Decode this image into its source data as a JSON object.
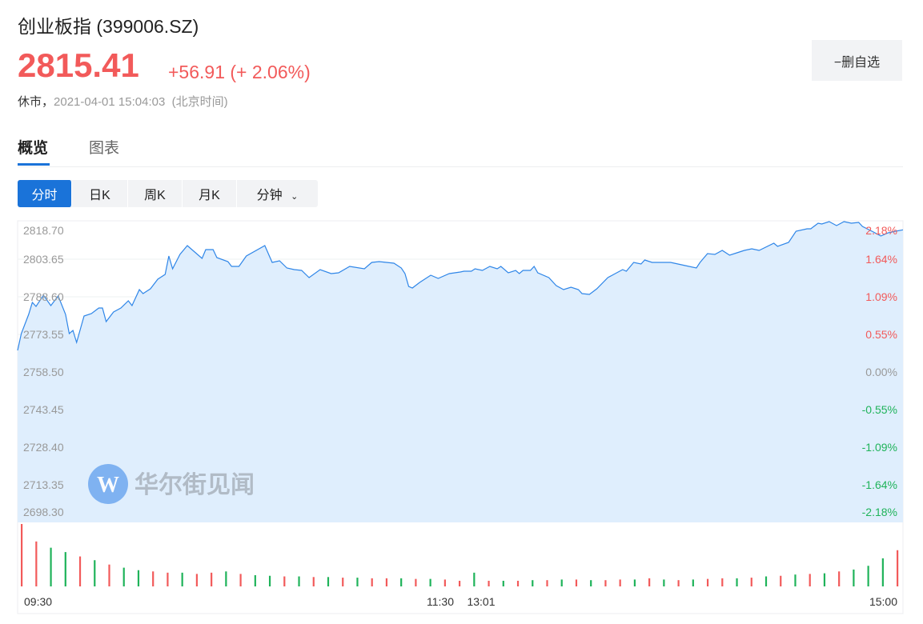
{
  "header": {
    "name": "创业板指",
    "code": "(399006.SZ)",
    "price": "2815.41",
    "change": "+56.91",
    "change_pct": "(+ 2.06%)",
    "status": "休市，",
    "time": "2021-04-01 15:04:03",
    "timezone": "(北京时间)",
    "fav_button": "−删自选"
  },
  "tabs": [
    {
      "label": "概览",
      "active": true
    },
    {
      "label": "图表",
      "active": false
    }
  ],
  "periods": [
    {
      "label": "分时",
      "active": true
    },
    {
      "label": "日K"
    },
    {
      "label": "周K"
    },
    {
      "label": "月K"
    },
    {
      "label": "分钟",
      "has_dropdown": true
    }
  ],
  "watermark": {
    "text": "华尔街见闻",
    "logo_letter": "W"
  },
  "colors": {
    "up": "#f25a5a",
    "down": "#1fb35a",
    "line": "#2f86e8",
    "area": "#dfeefd",
    "accent": "#1a73d9",
    "neutral": "#999999"
  },
  "chart_data": {
    "type": "area",
    "prev_close": 2758.5,
    "ylim": [
      2698.3,
      2818.7
    ],
    "y_ticks": [
      "2818.70",
      "2803.65",
      "2788.60",
      "2773.55",
      "2758.50",
      "2743.45",
      "2728.40",
      "2713.35",
      "2698.30"
    ],
    "pct_ticks": [
      "2.18%",
      "1.64%",
      "1.09%",
      "0.55%",
      "0.00%",
      "-0.55%",
      "-1.09%",
      "-1.64%",
      "-2.18%"
    ],
    "x_ticks": [
      "09:30",
      "11:30",
      "13:01",
      "15:00"
    ],
    "points": [
      [
        "09:30",
        2767.15
      ],
      [
        "09:31",
        2773.87
      ],
      [
        "09:33",
        2781.56
      ],
      [
        "09:34",
        2786.36
      ],
      [
        "09:35",
        2784.76
      ],
      [
        "09:37",
        2789.24
      ],
      [
        "09:39",
        2785.08
      ],
      [
        "09:41",
        2788.92
      ],
      [
        "09:43",
        2781.56
      ],
      [
        "09:44",
        2773.87
      ],
      [
        "09:45",
        2775.15
      ],
      [
        "09:46",
        2770.35
      ],
      [
        "09:48",
        2780.92
      ],
      [
        "09:50",
        2781.88
      ],
      [
        "09:52",
        2784.12
      ],
      [
        "09:53",
        2784.12
      ],
      [
        "09:54",
        2778.67
      ],
      [
        "09:56",
        2782.52
      ],
      [
        "09:58",
        2784.12
      ],
      [
        "10:00",
        2787.0
      ],
      [
        "10:01",
        2785.08
      ],
      [
        "10:03",
        2791.48
      ],
      [
        "10:04",
        2789.88
      ],
      [
        "10:06",
        2791.8
      ],
      [
        "10:08",
        2795.65
      ],
      [
        "10:10",
        2797.57
      ],
      [
        "10:11",
        2804.93
      ],
      [
        "10:12",
        2799.81
      ],
      [
        "10:14",
        2805.57
      ],
      [
        "10:16",
        2809.09
      ],
      [
        "10:18",
        2806.53
      ],
      [
        "10:20",
        2803.97
      ],
      [
        "10:21",
        2807.49
      ],
      [
        "10:23",
        2807.49
      ],
      [
        "10:24",
        2804.29
      ],
      [
        "10:27",
        2802.69
      ],
      [
        "10:28",
        2800.77
      ],
      [
        "10:30",
        2800.77
      ],
      [
        "10:32",
        2804.93
      ],
      [
        "10:37",
        2809.09
      ],
      [
        "10:39",
        2802.37
      ],
      [
        "10:41",
        2803.01
      ],
      [
        "10:43",
        2800.13
      ],
      [
        "10:45",
        2799.49
      ],
      [
        "10:47",
        2799.17
      ],
      [
        "10:49",
        2796.29
      ],
      [
        "10:52",
        2799.49
      ],
      [
        "10:55",
        2797.89
      ],
      [
        "10:57",
        2798.21
      ],
      [
        "11:00",
        2800.77
      ],
      [
        "11:04",
        2799.81
      ],
      [
        "11:06",
        2802.37
      ],
      [
        "11:08",
        2802.69
      ],
      [
        "11:12",
        2802.05
      ],
      [
        "11:14",
        2800.13
      ],
      [
        "11:15",
        2797.89
      ],
      [
        "11:16",
        2792.76
      ],
      [
        "11:17",
        2792.12
      ],
      [
        "11:19",
        2794.36
      ],
      [
        "11:22",
        2797.25
      ],
      [
        "11:24",
        2795.97
      ],
      [
        "11:27",
        2797.89
      ],
      [
        "11:30",
        2798.53
      ],
      [
        "13:01",
        2798.85
      ],
      [
        "13:03",
        2798.85
      ],
      [
        "13:04",
        2799.81
      ],
      [
        "13:06",
        2799.17
      ],
      [
        "13:08",
        2800.77
      ],
      [
        "13:10",
        2799.81
      ],
      [
        "13:11",
        2800.77
      ],
      [
        "13:13",
        2798.21
      ],
      [
        "13:15",
        2799.17
      ],
      [
        "13:16",
        2797.89
      ],
      [
        "13:17",
        2799.17
      ],
      [
        "13:19",
        2799.17
      ],
      [
        "13:20",
        2800.77
      ],
      [
        "13:21",
        2798.21
      ],
      [
        "13:24",
        2796.29
      ],
      [
        "13:26",
        2793.08
      ],
      [
        "13:28",
        2791.48
      ],
      [
        "13:30",
        2792.44
      ],
      [
        "13:32",
        2791.48
      ],
      [
        "13:33",
        2789.88
      ],
      [
        "13:35",
        2789.56
      ],
      [
        "13:37",
        2791.8
      ],
      [
        "13:40",
        2796.29
      ],
      [
        "13:42",
        2797.89
      ],
      [
        "13:44",
        2799.49
      ],
      [
        "13:45",
        2798.85
      ],
      [
        "13:47",
        2802.37
      ],
      [
        "13:49",
        2801.73
      ],
      [
        "13:50",
        2803.33
      ],
      [
        "13:52",
        2802.37
      ],
      [
        "13:55",
        2802.37
      ],
      [
        "13:57",
        2802.37
      ],
      [
        "14:01",
        2801.09
      ],
      [
        "14:04",
        2800.13
      ],
      [
        "14:05",
        2802.37
      ],
      [
        "14:07",
        2805.89
      ],
      [
        "14:09",
        2805.57
      ],
      [
        "14:11",
        2807.17
      ],
      [
        "14:13",
        2805.25
      ],
      [
        "14:15",
        2806.21
      ],
      [
        "14:17",
        2807.17
      ],
      [
        "14:19",
        2807.81
      ],
      [
        "14:21",
        2807.17
      ],
      [
        "14:25",
        2810.05
      ],
      [
        "14:26",
        2808.77
      ],
      [
        "14:29",
        2810.37
      ],
      [
        "14:31",
        2814.86
      ],
      [
        "14:34",
        2815.82
      ],
      [
        "14:35",
        2815.82
      ],
      [
        "14:37",
        2818.06
      ],
      [
        "14:38",
        2817.74
      ],
      [
        "14:40",
        2818.7
      ],
      [
        "14:42",
        2817.1
      ],
      [
        "14:44",
        2818.7
      ],
      [
        "14:46",
        2818.06
      ],
      [
        "14:48",
        2818.38
      ],
      [
        "14:49",
        2816.78
      ],
      [
        "14:52",
        2814.54
      ],
      [
        "14:54",
        2812.94
      ],
      [
        "14:56",
        2814.22
      ],
      [
        "14:58",
        2814.86
      ],
      [
        "15:00",
        2815.41
      ]
    ],
    "volume_relative": [
      100,
      72,
      62,
      55,
      48,
      42,
      35,
      30,
      26,
      24,
      22,
      22,
      20,
      22,
      24,
      20,
      18,
      17,
      16,
      16,
      15,
      15,
      14,
      14,
      13,
      13,
      13,
      12,
      12,
      11,
      9,
      22,
      9,
      9,
      9,
      10,
      10,
      11,
      11,
      10,
      10,
      11,
      11,
      13,
      11,
      10,
      11,
      12,
      13,
      13,
      14,
      16,
      17,
      19,
      20,
      21,
      24,
      27,
      33,
      45,
      58
    ],
    "volume_colors": [
      "r",
      "r",
      "g",
      "g",
      "r",
      "g",
      "r",
      "g",
      "g",
      "r",
      "r",
      "g",
      "r",
      "r",
      "g",
      "r",
      "g",
      "g",
      "r",
      "g",
      "r",
      "g",
      "r",
      "g",
      "r",
      "r",
      "g",
      "r",
      "g",
      "r",
      "r",
      "g",
      "r",
      "g",
      "r",
      "g",
      "r",
      "g",
      "r",
      "g",
      "r",
      "r",
      "g",
      "r",
      "g",
      "r",
      "g",
      "r",
      "r",
      "g",
      "r",
      "g",
      "r",
      "g",
      "r",
      "g",
      "r",
      "g",
      "g",
      "g",
      "r"
    ]
  }
}
